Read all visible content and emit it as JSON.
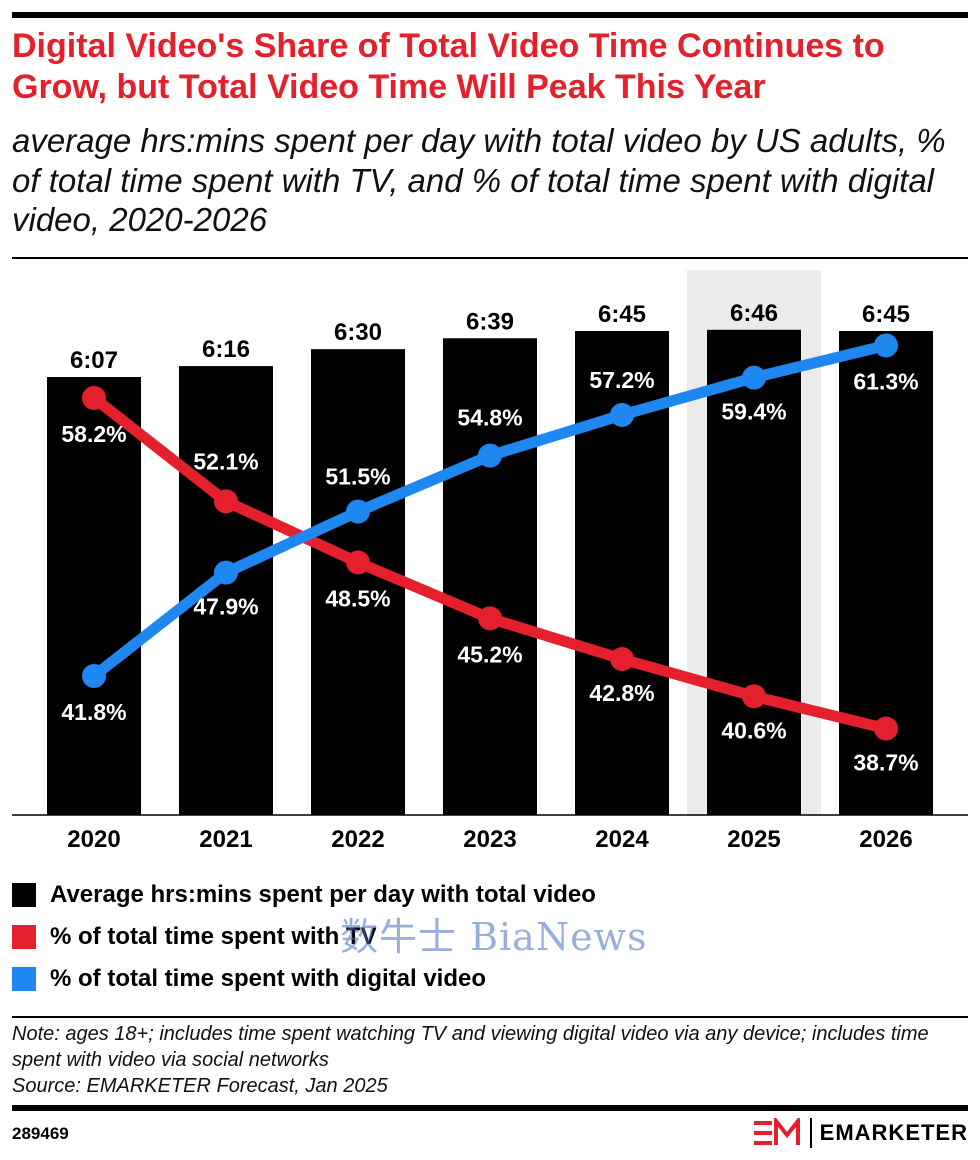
{
  "header": {
    "title": "Digital Video's Share of Total Video Time Continues to Grow, but Total Video Time Will Peak This Year",
    "subtitle": "average hrs:mins spent per day with total video by US adults, % of total time spent with TV, and % of total time spent with digital video, 2020-2026"
  },
  "chart_data": {
    "type": "bar",
    "categories": [
      "2020",
      "2021",
      "2022",
      "2023",
      "2024",
      "2025",
      "2026"
    ],
    "highlighted_category": "2025",
    "bars": {
      "name": "Average hrs:mins spent per day with total video",
      "values_minutes": [
        367,
        376,
        390,
        399,
        405,
        406,
        405
      ],
      "labels": [
        "6:07",
        "6:16",
        "6:30",
        "6:39",
        "6:45",
        "6:46",
        "6:45"
      ],
      "color": "#000000"
    },
    "series": [
      {
        "name": "% of total time spent with TV",
        "type": "line",
        "values": [
          58.2,
          52.1,
          48.5,
          45.2,
          42.8,
          40.6,
          38.7
        ],
        "labels": [
          "58.2%",
          "52.1%",
          "48.5%",
          "45.2%",
          "42.8%",
          "40.6%",
          "38.7%"
        ],
        "color": "#e3202b"
      },
      {
        "name": "% of total time spent with digital video",
        "type": "line",
        "values": [
          41.8,
          47.9,
          51.5,
          54.8,
          57.2,
          59.4,
          61.3
        ],
        "labels": [
          "41.8%",
          "47.9%",
          "51.5%",
          "54.8%",
          "57.2%",
          "59.4%",
          "61.3%"
        ],
        "color": "#1f88f0"
      }
    ],
    "legend_placement": "bottom",
    "grid": false
  },
  "legend": [
    {
      "label": "Average hrs:mins spent per day with total video",
      "color": "#000000"
    },
    {
      "label": "% of total time spent with TV",
      "color": "#e3202b"
    },
    {
      "label": "% of total time spent with digital video",
      "color": "#1f88f0"
    }
  ],
  "watermark": "数牛士 BiaNews",
  "footer": {
    "note": "Note: ages 18+; includes time spent watching TV and viewing digital video via any device; includes time spent with video via social networks",
    "source": "Source: EMARKETER Forecast, Jan 2025",
    "chart_id": "289469",
    "brand_mark": "EM",
    "brand_name": "EMARKETER"
  }
}
